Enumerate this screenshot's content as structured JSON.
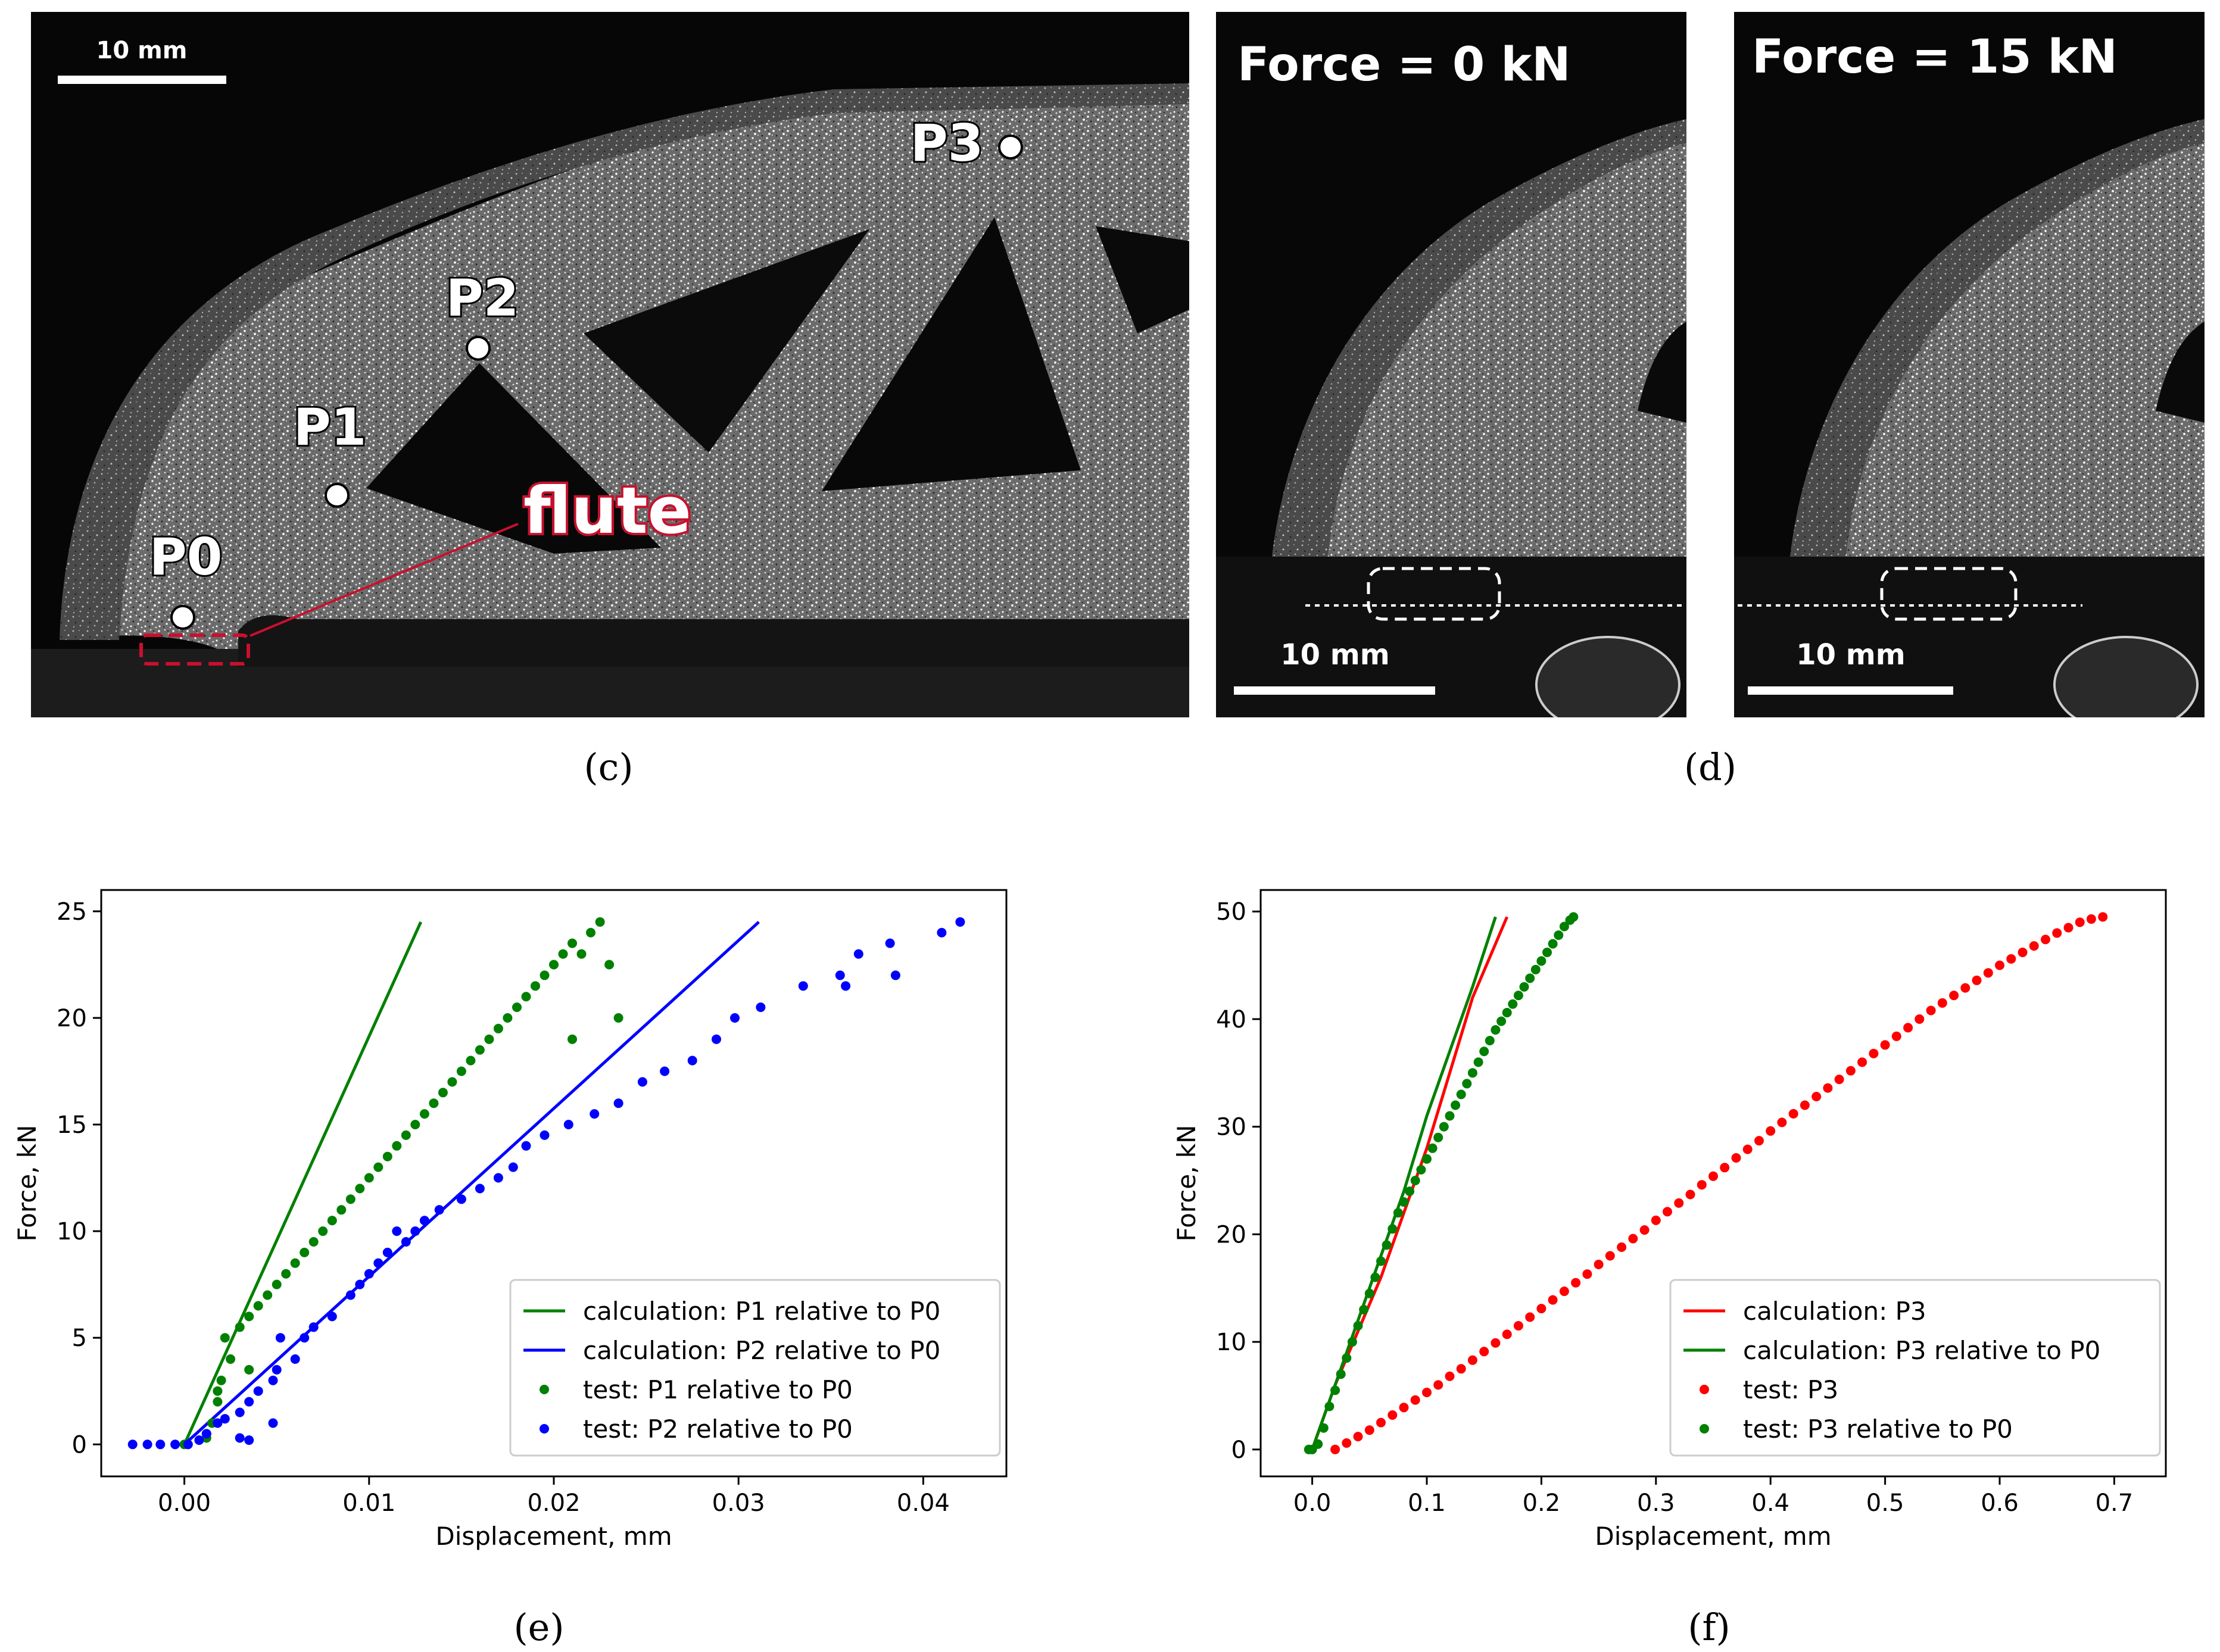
{
  "panels": {
    "c": {
      "label": "(c)",
      "scale_bar": "10 mm",
      "points": [
        "P0",
        "P1",
        "P2",
        "P3"
      ],
      "annotation": "flute"
    },
    "d": {
      "label": "(d)",
      "left": {
        "title": "Force = 0 kN",
        "scale_bar": "10 mm"
      },
      "right": {
        "title": "Force = 15 kN",
        "scale_bar": "10 mm"
      }
    }
  },
  "colors": {
    "green": "#008000",
    "blue": "#0000ff",
    "red": "#ff0000",
    "flute_red": "#c8102e"
  },
  "chart_data": [
    {
      "panel_label": "(e)",
      "type": "scatter",
      "xlabel": "Displacement, mm",
      "ylabel": "Force, kN",
      "xlim": [
        -0.0045,
        0.0445
      ],
      "ylim": [
        -1.5,
        26
      ],
      "xticks": [
        0.0,
        0.01,
        0.02,
        0.03,
        0.04
      ],
      "xtick_labels": [
        "0.00",
        "0.01",
        "0.02",
        "0.03",
        "0.04"
      ],
      "yticks": [
        0,
        5,
        10,
        15,
        20,
        25
      ],
      "ytick_labels": [
        "0",
        "5",
        "10",
        "15",
        "20",
        "25"
      ],
      "legend_position": "lower-right",
      "series": [
        {
          "name": "calculation: P1 relative to P0",
          "kind": "line",
          "color": "#008000",
          "x": [
            0.0,
            0.0128
          ],
          "y": [
            0,
            24.5
          ]
        },
        {
          "name": "calculation: P2 relative to P0",
          "kind": "line",
          "color": "#0000ff",
          "x": [
            0.0,
            0.0311
          ],
          "y": [
            0,
            24.5
          ]
        },
        {
          "name": "test: P1 relative to P0",
          "kind": "scatter",
          "color": "#008000",
          "x": [
            0.0,
            0.0012,
            0.0015,
            0.0018,
            0.002,
            0.0025,
            0.0022,
            0.003,
            0.0035,
            0.004,
            0.0045,
            0.005,
            0.0055,
            0.006,
            0.0065,
            0.007,
            0.0075,
            0.008,
            0.0085,
            0.009,
            0.0095,
            0.01,
            0.0105,
            0.011,
            0.0115,
            0.012,
            0.0125,
            0.013,
            0.0135,
            0.014,
            0.0145,
            0.015,
            0.0155,
            0.016,
            0.0165,
            0.017,
            0.0175,
            0.018,
            0.0185,
            0.019,
            0.0195,
            0.02,
            0.0205,
            0.021,
            0.0215,
            0.022,
            0.0225,
            0.023,
            0.0235,
            0.021,
            0.0035,
            0.0018,
            0.0012
          ],
          "y": [
            0,
            0.3,
            1.0,
            2.0,
            3.0,
            4.0,
            5.0,
            5.5,
            6.0,
            6.5,
            7.0,
            7.5,
            8.0,
            8.5,
            9.0,
            9.5,
            10.0,
            10.5,
            11.0,
            11.5,
            12.0,
            12.5,
            13.0,
            13.5,
            14.0,
            14.5,
            15.0,
            15.5,
            16.0,
            16.5,
            17.0,
            17.5,
            18.0,
            18.5,
            19.0,
            19.5,
            20.0,
            20.5,
            21.0,
            21.5,
            22.0,
            22.5,
            23.0,
            23.5,
            23.0,
            24.0,
            24.5,
            22.5,
            20.0,
            19.0,
            3.5,
            2.5,
            0.5
          ]
        },
        {
          "name": "test: P2 relative to P0",
          "kind": "scatter",
          "color": "#0000ff",
          "x": [
            -0.0028,
            -0.002,
            -0.0013,
            -0.0005,
            0.0002,
            0.0008,
            0.0012,
            0.0018,
            0.0022,
            0.003,
            0.0035,
            0.004,
            0.0048,
            0.005,
            0.006,
            0.0065,
            0.007,
            0.008,
            0.009,
            0.0095,
            0.01,
            0.0105,
            0.011,
            0.012,
            0.0125,
            0.013,
            0.0138,
            0.015,
            0.016,
            0.017,
            0.0178,
            0.0185,
            0.0195,
            0.0208,
            0.0222,
            0.0235,
            0.0248,
            0.026,
            0.0275,
            0.0288,
            0.0298,
            0.0312,
            0.0335,
            0.0355,
            0.0365,
            0.0382,
            0.041,
            0.042,
            0.0358,
            0.0385,
            0.0115,
            0.0052,
            0.0048,
            0.0035,
            0.003
          ],
          "y": [
            0,
            0,
            0,
            0,
            0,
            0.2,
            0.5,
            1.0,
            1.2,
            1.5,
            2.0,
            2.5,
            3.0,
            3.5,
            4.0,
            5.0,
            5.5,
            6.0,
            7.0,
            7.5,
            8.0,
            8.5,
            9.0,
            9.5,
            10.0,
            10.5,
            11.0,
            11.5,
            12.0,
            12.5,
            13.0,
            14.0,
            14.5,
            15.0,
            15.5,
            16.0,
            17.0,
            17.5,
            18.0,
            19.0,
            20.0,
            20.5,
            21.5,
            22.0,
            23.0,
            23.5,
            24.0,
            24.5,
            21.5,
            22.0,
            10.0,
            5.0,
            1.0,
            0.2,
            0.3
          ]
        }
      ]
    },
    {
      "panel_label": "(f)",
      "type": "scatter",
      "xlabel": "Displacement, mm",
      "ylabel": "Force, kN",
      "xlim": [
        -0.045,
        0.745
      ],
      "ylim": [
        -2.5,
        52
      ],
      "xticks": [
        0.0,
        0.1,
        0.2,
        0.3,
        0.4,
        0.5,
        0.6,
        0.7
      ],
      "xtick_labels": [
        "0.0",
        "0.1",
        "0.2",
        "0.3",
        "0.4",
        "0.5",
        "0.6",
        "0.7"
      ],
      "yticks": [
        0,
        10,
        20,
        30,
        40,
        50
      ],
      "ytick_labels": [
        "0",
        "10",
        "20",
        "30",
        "40",
        "50"
      ],
      "legend_position": "lower-right",
      "series": [
        {
          "name": "calculation: P3",
          "kind": "line",
          "color": "#ff0000",
          "x": [
            0.0,
            0.01,
            0.02,
            0.04,
            0.06,
            0.08,
            0.1,
            0.12,
            0.14,
            0.17
          ],
          "y": [
            0,
            3,
            6,
            11,
            16,
            22,
            28,
            35,
            42,
            49.5
          ]
        },
        {
          "name": "calculation: P3 relative to P0",
          "kind": "line",
          "color": "#008000",
          "x": [
            0.0,
            0.01,
            0.02,
            0.04,
            0.06,
            0.08,
            0.1,
            0.12,
            0.14,
            0.16
          ],
          "y": [
            0,
            3,
            6,
            12,
            18,
            24,
            31,
            37,
            43,
            49.5
          ]
        },
        {
          "name": "test: P3",
          "kind": "scatter",
          "color": "#ff0000",
          "x": [
            0.02,
            0.03,
            0.04,
            0.05,
            0.06,
            0.07,
            0.08,
            0.09,
            0.1,
            0.11,
            0.12,
            0.13,
            0.14,
            0.15,
            0.16,
            0.17,
            0.18,
            0.19,
            0.2,
            0.21,
            0.22,
            0.23,
            0.24,
            0.25,
            0.26,
            0.27,
            0.28,
            0.29,
            0.3,
            0.31,
            0.32,
            0.33,
            0.34,
            0.35,
            0.36,
            0.37,
            0.38,
            0.39,
            0.4,
            0.41,
            0.42,
            0.43,
            0.44,
            0.45,
            0.46,
            0.47,
            0.48,
            0.49,
            0.5,
            0.51,
            0.52,
            0.53,
            0.54,
            0.55,
            0.56,
            0.57,
            0.58,
            0.59,
            0.6,
            0.61,
            0.62,
            0.63,
            0.64,
            0.65,
            0.66,
            0.67,
            0.68,
            0.69
          ],
          "y": [
            0,
            0.6,
            1.2,
            1.8,
            2.5,
            3.2,
            3.9,
            4.6,
            5.3,
            6.0,
            6.8,
            7.5,
            8.3,
            9.1,
            9.9,
            10.7,
            11.5,
            12.3,
            13.1,
            13.9,
            14.7,
            15.5,
            16.3,
            17.2,
            18.0,
            18.8,
            19.6,
            20.4,
            21.3,
            22.1,
            22.9,
            23.7,
            24.6,
            25.4,
            26.2,
            27.1,
            27.9,
            28.7,
            29.6,
            30.4,
            31.2,
            32.0,
            32.8,
            33.6,
            34.4,
            35.2,
            36.0,
            36.8,
            37.6,
            38.4,
            39.2,
            40.0,
            40.8,
            41.5,
            42.2,
            42.9,
            43.6,
            44.3,
            45.0,
            45.6,
            46.2,
            46.8,
            47.4,
            48.0,
            48.5,
            49.0,
            49.3,
            49.5
          ]
        },
        {
          "name": "test: P3 relative to P0",
          "kind": "scatter",
          "color": "#008000",
          "x": [
            -0.003,
            0.0,
            0.005,
            0.01,
            0.015,
            0.02,
            0.025,
            0.03,
            0.035,
            0.04,
            0.045,
            0.05,
            0.055,
            0.06,
            0.065,
            0.07,
            0.075,
            0.08,
            0.085,
            0.09,
            0.095,
            0.1,
            0.105,
            0.11,
            0.115,
            0.12,
            0.125,
            0.13,
            0.135,
            0.14,
            0.145,
            0.15,
            0.155,
            0.16,
            0.165,
            0.17,
            0.175,
            0.18,
            0.185,
            0.19,
            0.195,
            0.2,
            0.205,
            0.21,
            0.215,
            0.22,
            0.225,
            0.228
          ],
          "y": [
            0,
            0,
            0.5,
            2.0,
            4.0,
            5.5,
            7.0,
            8.5,
            10.0,
            11.5,
            13.0,
            14.5,
            16.0,
            17.5,
            19.0,
            20.5,
            22.0,
            23.0,
            24.0,
            25.0,
            26.0,
            27.0,
            28.0,
            29.0,
            30.0,
            31.0,
            32.0,
            33.0,
            34.0,
            35.0,
            36.0,
            37.0,
            38.0,
            39.0,
            39.8,
            40.6,
            41.4,
            42.2,
            43.0,
            43.8,
            44.6,
            45.4,
            46.2,
            47.0,
            47.8,
            48.6,
            49.2,
            49.5
          ]
        }
      ]
    }
  ]
}
